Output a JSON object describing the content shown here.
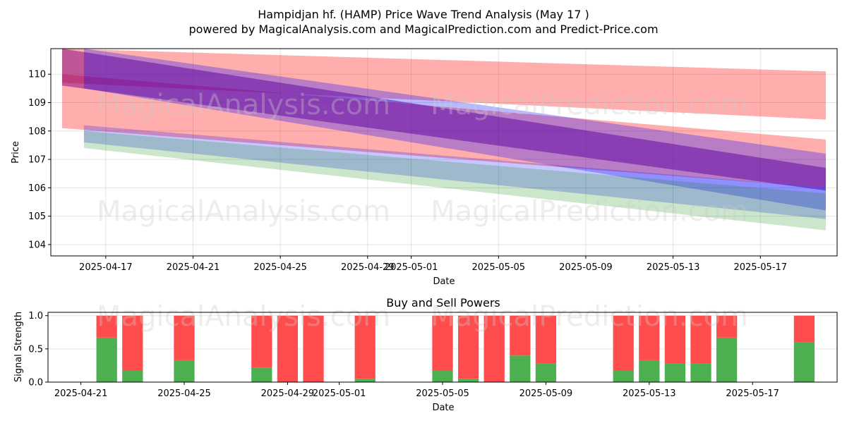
{
  "title": "Hampidjan hf. (HAMP) Price Wave Trend Analysis (May 17 )",
  "subtitle": "powered by MagicalAnalysis.com and MagicalPrediction.com and Predict-Price.com",
  "watermark": [
    "MagicalAnalysis.com",
    "MagicalPrediction.com"
  ],
  "colors": {
    "red": "#ff0000",
    "blue": "#0000ff",
    "green": "#008000",
    "purple": "#800080",
    "buy": "#4caf50",
    "sell": "#ff4d4d"
  },
  "chart_data": [
    {
      "type": "area",
      "xlabel": "Date",
      "ylabel": "Price",
      "ylim": [
        103.6,
        110.9
      ],
      "xlim": [
        "2025-04-15",
        "2025-05-20"
      ],
      "yticks": [
        104,
        105,
        106,
        107,
        108,
        109,
        110
      ],
      "xticks": [
        "2025-04-17",
        "2025-04-21",
        "2025-04-25",
        "2025-04-29",
        "2025-05-01",
        "2025-05-05",
        "2025-05-09",
        "2025-05-13",
        "2025-05-17"
      ],
      "grid": true,
      "bands": [
        {
          "color": "red",
          "opacity": 0.32,
          "x": [
            "2025-04-15",
            "2025-05-20"
          ],
          "upper": [
            110.9,
            110.1
          ],
          "lower": [
            109.7,
            108.4
          ]
        },
        {
          "color": "red",
          "opacity": 0.32,
          "x": [
            "2025-04-15",
            "2025-05-20"
          ],
          "upper": [
            110.0,
            107.7
          ],
          "lower": [
            108.1,
            106.0
          ]
        },
        {
          "color": "purple",
          "opacity": 0.5,
          "x": [
            "2025-04-15",
            "2025-05-20"
          ],
          "upper": [
            110.9,
            106.7
          ],
          "lower": [
            109.6,
            105.9
          ]
        },
        {
          "color": "blue",
          "opacity": 0.28,
          "x": [
            "2025-04-16",
            "2025-05-20"
          ],
          "upper": [
            110.9,
            107.2
          ],
          "lower": [
            109.5,
            105.2
          ]
        },
        {
          "color": "blue",
          "opacity": 0.22,
          "x": [
            "2025-04-16",
            "2025-05-20"
          ],
          "upper": [
            108.2,
            106.0
          ],
          "lower": [
            107.6,
            104.9
          ]
        },
        {
          "color": "green",
          "opacity": 0.2,
          "x": [
            "2025-04-16",
            "2025-05-20"
          ],
          "upper": [
            108.0,
            105.8
          ],
          "lower": [
            107.4,
            104.5
          ]
        }
      ]
    },
    {
      "type": "bar",
      "title": "Buy and Sell Powers",
      "xlabel": "Date",
      "ylabel": "Signal Strength",
      "ylim": [
        0,
        1.05
      ],
      "yticks": [
        "0.0",
        "0.5",
        "1.0"
      ],
      "xticks": [
        "2025-04-21",
        "2025-04-25",
        "2025-04-29",
        "2025-05-01",
        "2025-05-05",
        "2025-05-09",
        "2025-05-13",
        "2025-05-17"
      ],
      "series": [
        {
          "name": "Buy",
          "color": "buy"
        },
        {
          "name": "Sell",
          "color": "sell"
        }
      ],
      "dates": [
        "2025-04-22",
        "2025-04-23",
        "2025-04-25",
        "2025-04-28",
        "2025-04-29",
        "2025-04-30",
        "2025-05-02",
        "2025-05-05",
        "2025-05-06",
        "2025-05-07",
        "2025-05-08",
        "2025-05-09",
        "2025-05-12",
        "2025-05-13",
        "2025-05-14",
        "2025-05-15",
        "2025-05-16",
        "2025-05-19"
      ],
      "buy": [
        0.67,
        0.17,
        0.33,
        0.22,
        0.0,
        0.0,
        0.05,
        0.17,
        0.05,
        0.0,
        0.4,
        0.28,
        0.17,
        0.33,
        0.28,
        0.28,
        0.67,
        0.6
      ],
      "sell": [
        0.33,
        0.83,
        0.67,
        0.78,
        1.0,
        1.0,
        0.95,
        0.83,
        0.95,
        1.0,
        0.6,
        0.72,
        0.83,
        0.67,
        0.72,
        0.72,
        0.33,
        0.4
      ]
    }
  ]
}
